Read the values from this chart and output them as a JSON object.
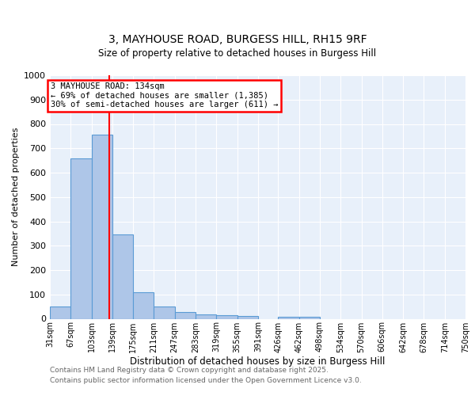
{
  "title1": "3, MAYHOUSE ROAD, BURGESS HILL, RH15 9RF",
  "title2": "Size of property relative to detached houses in Burgess Hill",
  "xlabel": "Distribution of detached houses by size in Burgess Hill",
  "ylabel": "Number of detached properties",
  "bin_labels": [
    "31sqm",
    "67sqm",
    "103sqm",
    "139sqm",
    "175sqm",
    "211sqm",
    "247sqm",
    "283sqm",
    "319sqm",
    "355sqm",
    "391sqm",
    "426sqm",
    "462sqm",
    "498sqm",
    "534sqm",
    "570sqm",
    "606sqm",
    "642sqm",
    "678sqm",
    "714sqm",
    "750sqm"
  ],
  "bin_edges": [
    31,
    67,
    103,
    139,
    175,
    211,
    247,
    283,
    319,
    355,
    391,
    426,
    462,
    498,
    534,
    570,
    606,
    642,
    678,
    714,
    750
  ],
  "bar_heights": [
    50,
    660,
    755,
    345,
    110,
    50,
    28,
    18,
    15,
    10,
    0,
    8,
    8,
    0,
    0,
    0,
    0,
    0,
    0,
    0
  ],
  "bar_color": "#aec6e8",
  "bar_edge_color": "#5a9bd5",
  "vline_x": 134,
  "vline_color": "red",
  "annotation_title": "3 MAYHOUSE ROAD: 134sqm",
  "annotation_line1": "← 69% of detached houses are smaller (1,385)",
  "annotation_line2": "30% of semi-detached houses are larger (611) →",
  "ylim": [
    0,
    1000
  ],
  "yticks": [
    0,
    100,
    200,
    300,
    400,
    500,
    600,
    700,
    800,
    900,
    1000
  ],
  "background_color": "#e8f0fa",
  "footer1": "Contains HM Land Registry data © Crown copyright and database right 2025.",
  "footer2": "Contains public sector information licensed under the Open Government Licence v3.0."
}
